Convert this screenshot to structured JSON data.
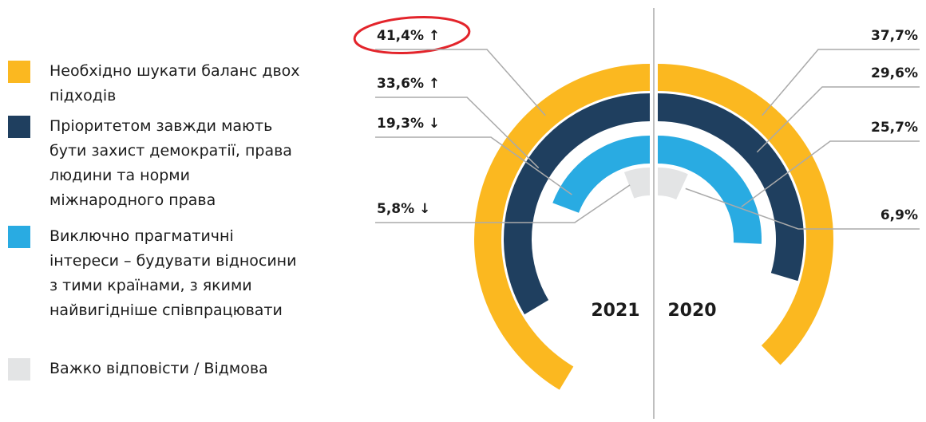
{
  "chart_data": {
    "type": "radial_bar",
    "categories": [
      "Необхідно шукати баланс двох підходів",
      "Пріоритетом завжди мають бути захист демократії, права людини та норми міжнародного права",
      "Виключно прагматичні інтереси – будувати відносини з тими країнами, з якими найвигідніше співпрацювати",
      "Важко відповісти / Відмова"
    ],
    "colors": [
      "#fbb820",
      "#1f3f5f",
      "#29abe2",
      "#e3e4e5"
    ],
    "vlim": [
      0,
      100
    ],
    "series": [
      {
        "name": "2021",
        "color": "#29abe2",
        "values": [
          41.4,
          33.6,
          19.3,
          5.8
        ],
        "value_labels": [
          "41,4% ↑",
          "33,6% ↑",
          "19,3% ↓",
          "5,8% ↓"
        ]
      },
      {
        "name": "2020",
        "color": "#fbb820",
        "values": [
          37.7,
          29.6,
          25.7,
          6.9
        ],
        "value_labels": [
          "37,7%",
          "29,6%",
          "25,7%",
          "6,9%"
        ]
      }
    ]
  }
}
